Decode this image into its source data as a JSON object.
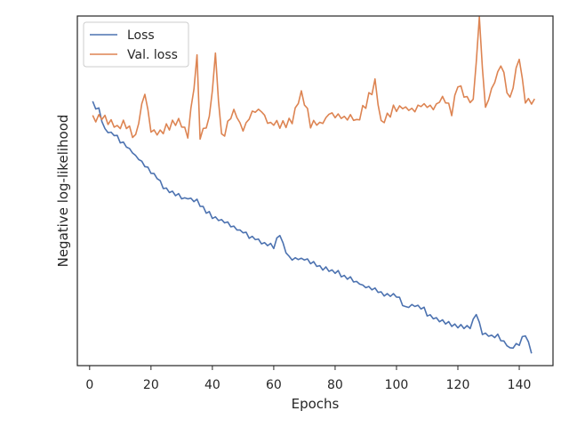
{
  "chart_data": {
    "type": "line",
    "title": "",
    "xlabel": "Epochs",
    "ylabel": "Negative log-likelihood",
    "xlim": [
      -4,
      151
    ],
    "ylim": [
      0,
      1
    ],
    "xticks": [
      0,
      20,
      40,
      60,
      80,
      100,
      120,
      140
    ],
    "y_tick_labels_shown": false,
    "grid": false,
    "legend_placement": "top-left",
    "series": [
      {
        "name": "Loss",
        "color": "#4c72b0",
        "anchors": [
          [
            1,
            0.752
          ],
          [
            3,
            0.73
          ],
          [
            5,
            0.678
          ],
          [
            8,
            0.658
          ],
          [
            12,
            0.632
          ],
          [
            15,
            0.599
          ],
          [
            20,
            0.556
          ],
          [
            25,
            0.503
          ],
          [
            30,
            0.483
          ],
          [
            35,
            0.468
          ],
          [
            38,
            0.44
          ],
          [
            42,
            0.418
          ],
          [
            45,
            0.405
          ],
          [
            50,
            0.38
          ],
          [
            55,
            0.358
          ],
          [
            60,
            0.34
          ],
          [
            62,
            0.374
          ],
          [
            65,
            0.307
          ],
          [
            70,
            0.306
          ],
          [
            75,
            0.282
          ],
          [
            80,
            0.268
          ],
          [
            85,
            0.248
          ],
          [
            90,
            0.225
          ],
          [
            93,
            0.22
          ],
          [
            95,
            0.205
          ],
          [
            100,
            0.2
          ],
          [
            103,
            0.168
          ],
          [
            108,
            0.17
          ],
          [
            110,
            0.148
          ],
          [
            115,
            0.125
          ],
          [
            120,
            0.11
          ],
          [
            124,
            0.108
          ],
          [
            126,
            0.152
          ],
          [
            128,
            0.09
          ],
          [
            133,
            0.085
          ],
          [
            137,
            0.05
          ],
          [
            140,
            0.062
          ],
          [
            142,
            0.09
          ],
          [
            144,
            0.04
          ]
        ],
        "noise": [
          0.004,
          0.007,
          0.007,
          0.006,
          0.0,
          0.005,
          0.003,
          0.0,
          0.007,
          0.008,
          0.001,
          0.007,
          0.0,
          0.002,
          0.002,
          0.001,
          0.003,
          0.004,
          0.003,
          0.006,
          0.004,
          0.0,
          0.005,
          0.007,
          0.005,
          0.004,
          0.004,
          0.005,
          0.005,
          0.006,
          0.0,
          0.0,
          0.005,
          0.002,
          0.008,
          0.003,
          0.006,
          0.004,
          0.006,
          0.008,
          0.002,
          0.003,
          0.004,
          0.001,
          0.006,
          0.003,
          0.004,
          0.002,
          0.003,
          0.0,
          0.006,
          0.007,
          0.003,
          0.002,
          0.004,
          0.006,
          0.001,
          0.004,
          0.006,
          0.005,
          0.008,
          0.002,
          0.0,
          0.007,
          0.006,
          0.005,
          0.002,
          0.003,
          0.001,
          0.004,
          0.004,
          0.005,
          0.006,
          0.003,
          0.004,
          0.006,
          0.006,
          0.004,
          0.003,
          0.004,
          0.008,
          0.006,
          0.002,
          0.005,
          0.006,
          0.004,
          0.002,
          0.001,
          0.001,
          0.002,
          0.003,
          0.005,
          0.002,
          0.003,
          0.006,
          0.005,
          0.003,
          0.004,
          0.005,
          0.004,
          0.006,
          0.007,
          0.001,
          0.002,
          0.006,
          0.0,
          0.003,
          0.008,
          0.008,
          0.006,
          0.002,
          0.005,
          0.003,
          0.004,
          0.006,
          0.003,
          0.007,
          0.004,
          0.006,
          0.002,
          0.008,
          0.003,
          0.006,
          0.002,
          0.003,
          0.006,
          0.003,
          0.001,
          0.004,
          0.004,
          0.0,
          0.006,
          0.005,
          0.005,
          0.003,
          0.002,
          0.001,
          0.004,
          0.005,
          0.004,
          0.007,
          0.005,
          0.003,
          0.005
        ]
      },
      {
        "name": "Val. loss",
        "color": "#dd8452",
        "anchors": [
          [
            1,
            0.71
          ],
          [
            3,
            0.712
          ],
          [
            5,
            0.708
          ],
          [
            8,
            0.686
          ],
          [
            12,
            0.69
          ],
          [
            15,
            0.655
          ],
          [
            18,
            0.778
          ],
          [
            20,
            0.68
          ],
          [
            23,
            0.66
          ],
          [
            26,
            0.688
          ],
          [
            29,
            0.7
          ],
          [
            32,
            0.665
          ],
          [
            35,
            0.875
          ],
          [
            36,
            0.66
          ],
          [
            39,
            0.706
          ],
          [
            41,
            0.885
          ],
          [
            43,
            0.65
          ],
          [
            47,
            0.728
          ],
          [
            50,
            0.675
          ],
          [
            53,
            0.72
          ],
          [
            56,
            0.734
          ],
          [
            58,
            0.695
          ],
          [
            62,
            0.69
          ],
          [
            66,
            0.7
          ],
          [
            69,
            0.785
          ],
          [
            72,
            0.69
          ],
          [
            75,
            0.688
          ],
          [
            78,
            0.72
          ],
          [
            83,
            0.71
          ],
          [
            87,
            0.7
          ],
          [
            90,
            0.748
          ],
          [
            93,
            0.81
          ],
          [
            95,
            0.7
          ],
          [
            100,
            0.74
          ],
          [
            105,
            0.735
          ],
          [
            108,
            0.75
          ],
          [
            112,
            0.735
          ],
          [
            115,
            0.77
          ],
          [
            118,
            0.72
          ],
          [
            120,
            0.81
          ],
          [
            122,
            0.77
          ],
          [
            125,
            0.76
          ],
          [
            127,
            0.995
          ],
          [
            129,
            0.73
          ],
          [
            131,
            0.79
          ],
          [
            134,
            0.86
          ],
          [
            137,
            0.76
          ],
          [
            140,
            0.88
          ],
          [
            142,
            0.76
          ],
          [
            145,
            0.76
          ]
        ],
        "noise": [
          0.006,
          0.014,
          0.006,
          0.006,
          0.008,
          0.011,
          0.01,
          0.004,
          0.0,
          0.01,
          0.013,
          0.012,
          0.007,
          0.014,
          0.006,
          0.003,
          0.012,
          0.002,
          0.003,
          0.012,
          0.001,
          0.007,
          0.014,
          0.006,
          0.013,
          0.014,
          0.01,
          0.009,
          0.007,
          0.006,
          0.005,
          0.014,
          0.001,
          0.014,
          0.014,
          0.012,
          0.003,
          0.011,
          0.007,
          0.009,
          0.009,
          0.011,
          0.013,
          0.013,
          0.01,
          0.002,
          0.005,
          0.001,
          0.002,
          0.004,
          0.005,
          0.0,
          0.008,
          0.0,
          0.004,
          0.008,
          0.002,
          0.002,
          0.002,
          0.005,
          0.01,
          0.011,
          0.008,
          0.014,
          0.01,
          0.008,
          0.009,
          0.007,
          0.001,
          0.008,
          0.014,
          0.01,
          0.012,
          0.001,
          0.008,
          0.006,
          0.0,
          0.001,
          0.005,
          0.007,
          0.006,
          0.005,
          0.003,
          0.005,
          0.013,
          0.001,
          0.004,
          0.013,
          0.012,
          0.012,
          0.012,
          0.014,
          0.01,
          0.009,
          0.001,
          0.013,
          0.006,
          0.013,
          0.013,
          0.013,
          0.004,
          0.003,
          0.003,
          0.006,
          0.001,
          0.014,
          0.0,
          0.009,
          0.003,
          0.004,
          0.006,
          0.003,
          0.002,
          0.005,
          0.0,
          0.002,
          0.014,
          0.005,
          0.008,
          0.013,
          0.01,
          0.002,
          0.003,
          0.011,
          0.002,
          0.009,
          0.002,
          0.012,
          0.009,
          0.0,
          0.003,
          0.004,
          0.004,
          0.003,
          0.012,
          0.013,
          0.008,
          0.006,
          0.012,
          0.004,
          0.002,
          0.009,
          0.004,
          0.012,
          0.003
        ]
      }
    ]
  }
}
